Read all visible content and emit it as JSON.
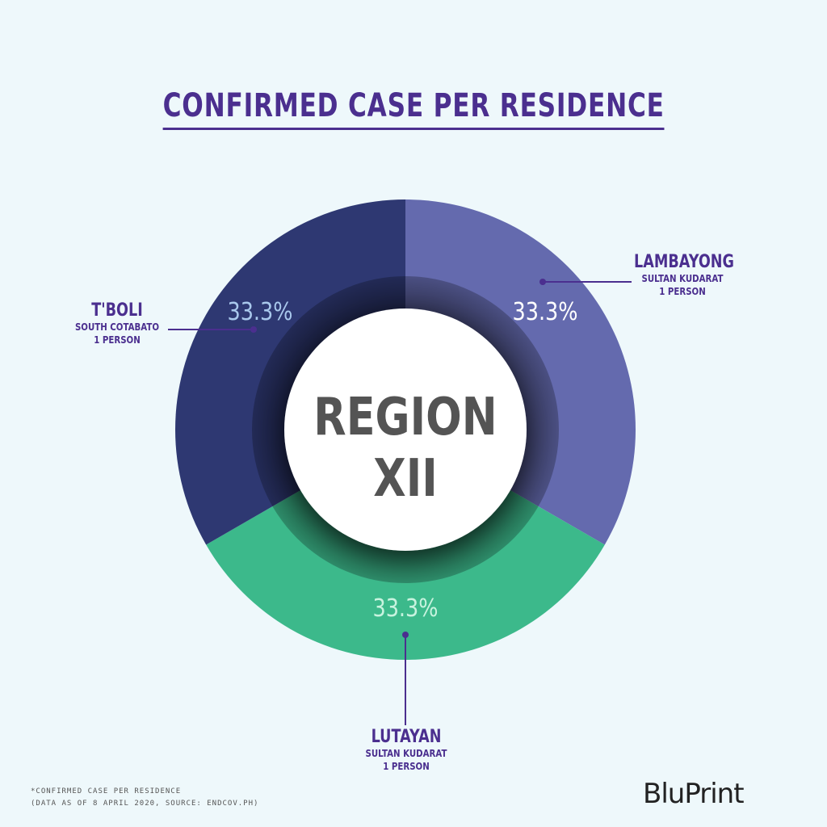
{
  "title": "CONFIRMED CASE PER RESIDENCE",
  "center_label": {
    "line1": "REGION",
    "line2": "XII"
  },
  "chart_data": {
    "type": "pie",
    "style": "donut",
    "title": "CONFIRMED CASE PER RESIDENCE",
    "slices": [
      {
        "name": "LAMBAYONG",
        "province": "SULTAN KUDARAT",
        "count_label": "1 PERSON",
        "value": 1,
        "percent_label": "33.3%",
        "color": "#646aae",
        "text_color": "#ffffff"
      },
      {
        "name": "LUTAYAN",
        "province": "SULTAN KUDARAT",
        "count_label": "1 PERSON",
        "value": 1,
        "percent_label": "33.3%",
        "color": "#3cb98b",
        "text_color": "#c8f3df"
      },
      {
        "name": "T'BOLI",
        "province": "SOUTH COTABATO",
        "count_label": "1 PERSON",
        "value": 1,
        "percent_label": "33.3%",
        "color": "#2e3872",
        "text_color": "#a9c8ec"
      }
    ]
  },
  "footnote": {
    "line1": "*CONFIRMED CASE PER RESIDENCE",
    "line2": "(DATA AS OF 8 APRIL 2020, SOURCE: ENDCOV.PH)"
  },
  "logo": "BluPrint"
}
